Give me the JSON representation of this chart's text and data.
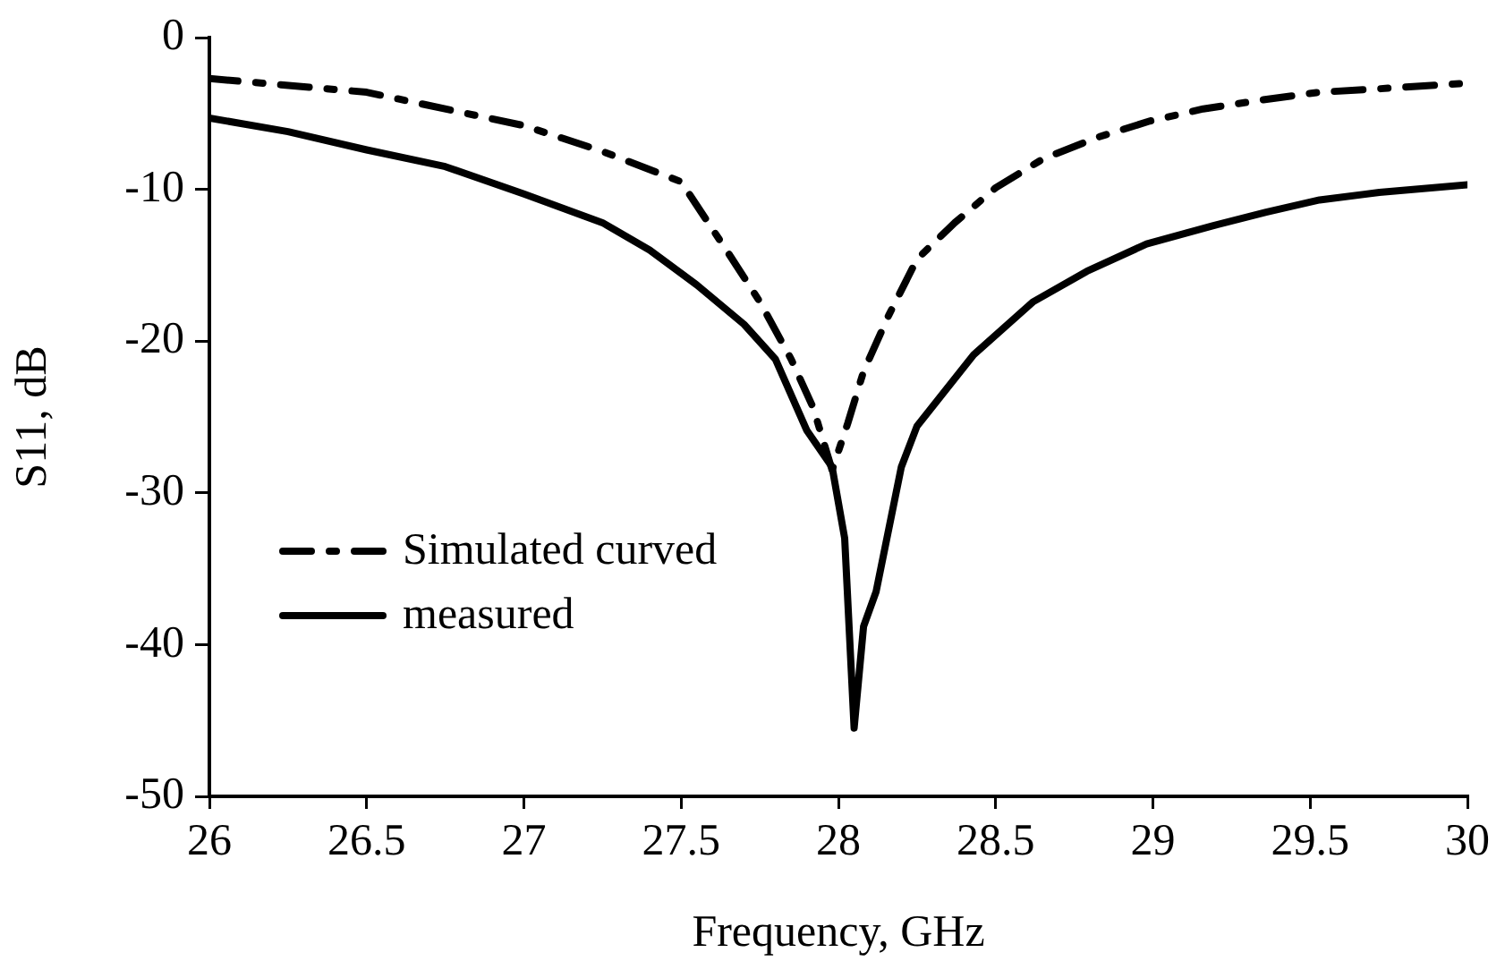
{
  "chart_data": {
    "type": "line",
    "xlabel": "Frequency, GHz",
    "ylabel": "S11, dB",
    "xlim": [
      26,
      30
    ],
    "xticks": [
      26,
      26.5,
      27,
      27.5,
      28,
      28.5,
      29,
      29.5,
      30
    ],
    "ylim": [
      -50,
      0
    ],
    "yticks": [
      -50,
      -40,
      -30,
      -20,
      -10,
      0
    ],
    "grid": false,
    "legend": "center left",
    "marker": "none",
    "series": [
      {
        "name": "Simulated curved",
        "color": "#000000",
        "line_style": "dashdot",
        "x": [
          26,
          26.5,
          27,
          27.25,
          27.5,
          27.65,
          27.75,
          27.85,
          27.92,
          27.98,
          28.03,
          28.08,
          28.16,
          28.25,
          28.37,
          28.5,
          28.65,
          28.82,
          28.99,
          29.16,
          29.35,
          29.53,
          29.7,
          29.93,
          30
        ],
        "values": [
          -2.7,
          -3.6,
          -5.8,
          -7.5,
          -9.5,
          -14.2,
          -17.4,
          -21.2,
          -24.4,
          -28.5,
          -25.4,
          -22,
          -18.3,
          -14.6,
          -12.2,
          -9.9,
          -8,
          -6.6,
          -5.5,
          -4.7,
          -4.1,
          -3.6,
          -3.4,
          -3.1,
          -3
        ]
      },
      {
        "name": "measured",
        "color": "#000000",
        "line_style": "solid",
        "x": [
          26,
          26.25,
          26.5,
          26.75,
          27,
          27.25,
          27.4,
          27.55,
          27.7,
          27.8,
          27.9,
          27.98,
          28.02,
          28.05,
          28.08,
          28.12,
          28.2,
          28.25,
          28.43,
          28.62,
          28.79,
          28.98,
          29.19,
          29.36,
          29.53,
          29.72,
          30
        ],
        "values": [
          -5.3,
          -6.2,
          -7.4,
          -8.5,
          -10.3,
          -12.2,
          -14,
          -16.3,
          -18.9,
          -21.2,
          -25.9,
          -28.3,
          -33,
          -45.5,
          -38.8,
          -36.5,
          -28.3,
          -25.6,
          -20.9,
          -17.4,
          -15.4,
          -13.6,
          -12.4,
          -11.5,
          -10.7,
          -10.2,
          -9.7
        ]
      }
    ]
  }
}
